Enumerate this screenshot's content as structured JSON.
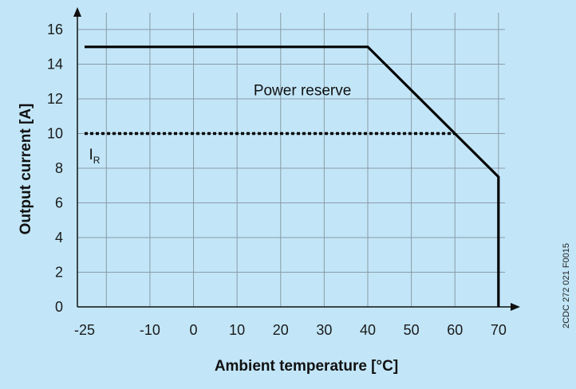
{
  "chart_data": {
    "type": "line",
    "xlabel": "Ambient temperature [°C]",
    "ylabel": "Output current [A]",
    "xlim": [
      -25,
      75
    ],
    "ylim": [
      0,
      16.5
    ],
    "x_ticks": [
      -25,
      -10,
      0,
      10,
      20,
      30,
      40,
      50,
      60,
      70
    ],
    "x_tick_labels": [
      "-25",
      "-10",
      "0",
      "10",
      "20",
      "30",
      "40",
      "50",
      "60",
      "70"
    ],
    "x_grid": [
      -20,
      -10,
      0,
      10,
      20,
      30,
      40,
      50,
      60,
      70
    ],
    "y_ticks": [
      0,
      2,
      4,
      6,
      8,
      10,
      12,
      14,
      16
    ],
    "y_tick_labels": [
      "0",
      "2",
      "4",
      "6",
      "8",
      "10",
      "12",
      "14",
      "16"
    ],
    "grid": true,
    "series": [
      {
        "style": "solid",
        "x": [
          -25,
          40,
          70,
          70
        ],
        "y": [
          15,
          15,
          7.5,
          0
        ]
      },
      {
        "style": "dotted",
        "x": [
          -25,
          60
        ],
        "y": [
          10,
          10
        ]
      }
    ],
    "annotations": {
      "power_reserve": {
        "text": "Power reserve",
        "x": 25,
        "y": 12.2
      },
      "rated_current": {
        "main": "I",
        "subscript": "R",
        "x": -24,
        "y": 8.5
      }
    },
    "colors": {
      "background": "#c2e6f8",
      "grid": "#8a9aa6",
      "line": "#000000"
    },
    "side_code": "2CDC 272 021 F0015"
  }
}
